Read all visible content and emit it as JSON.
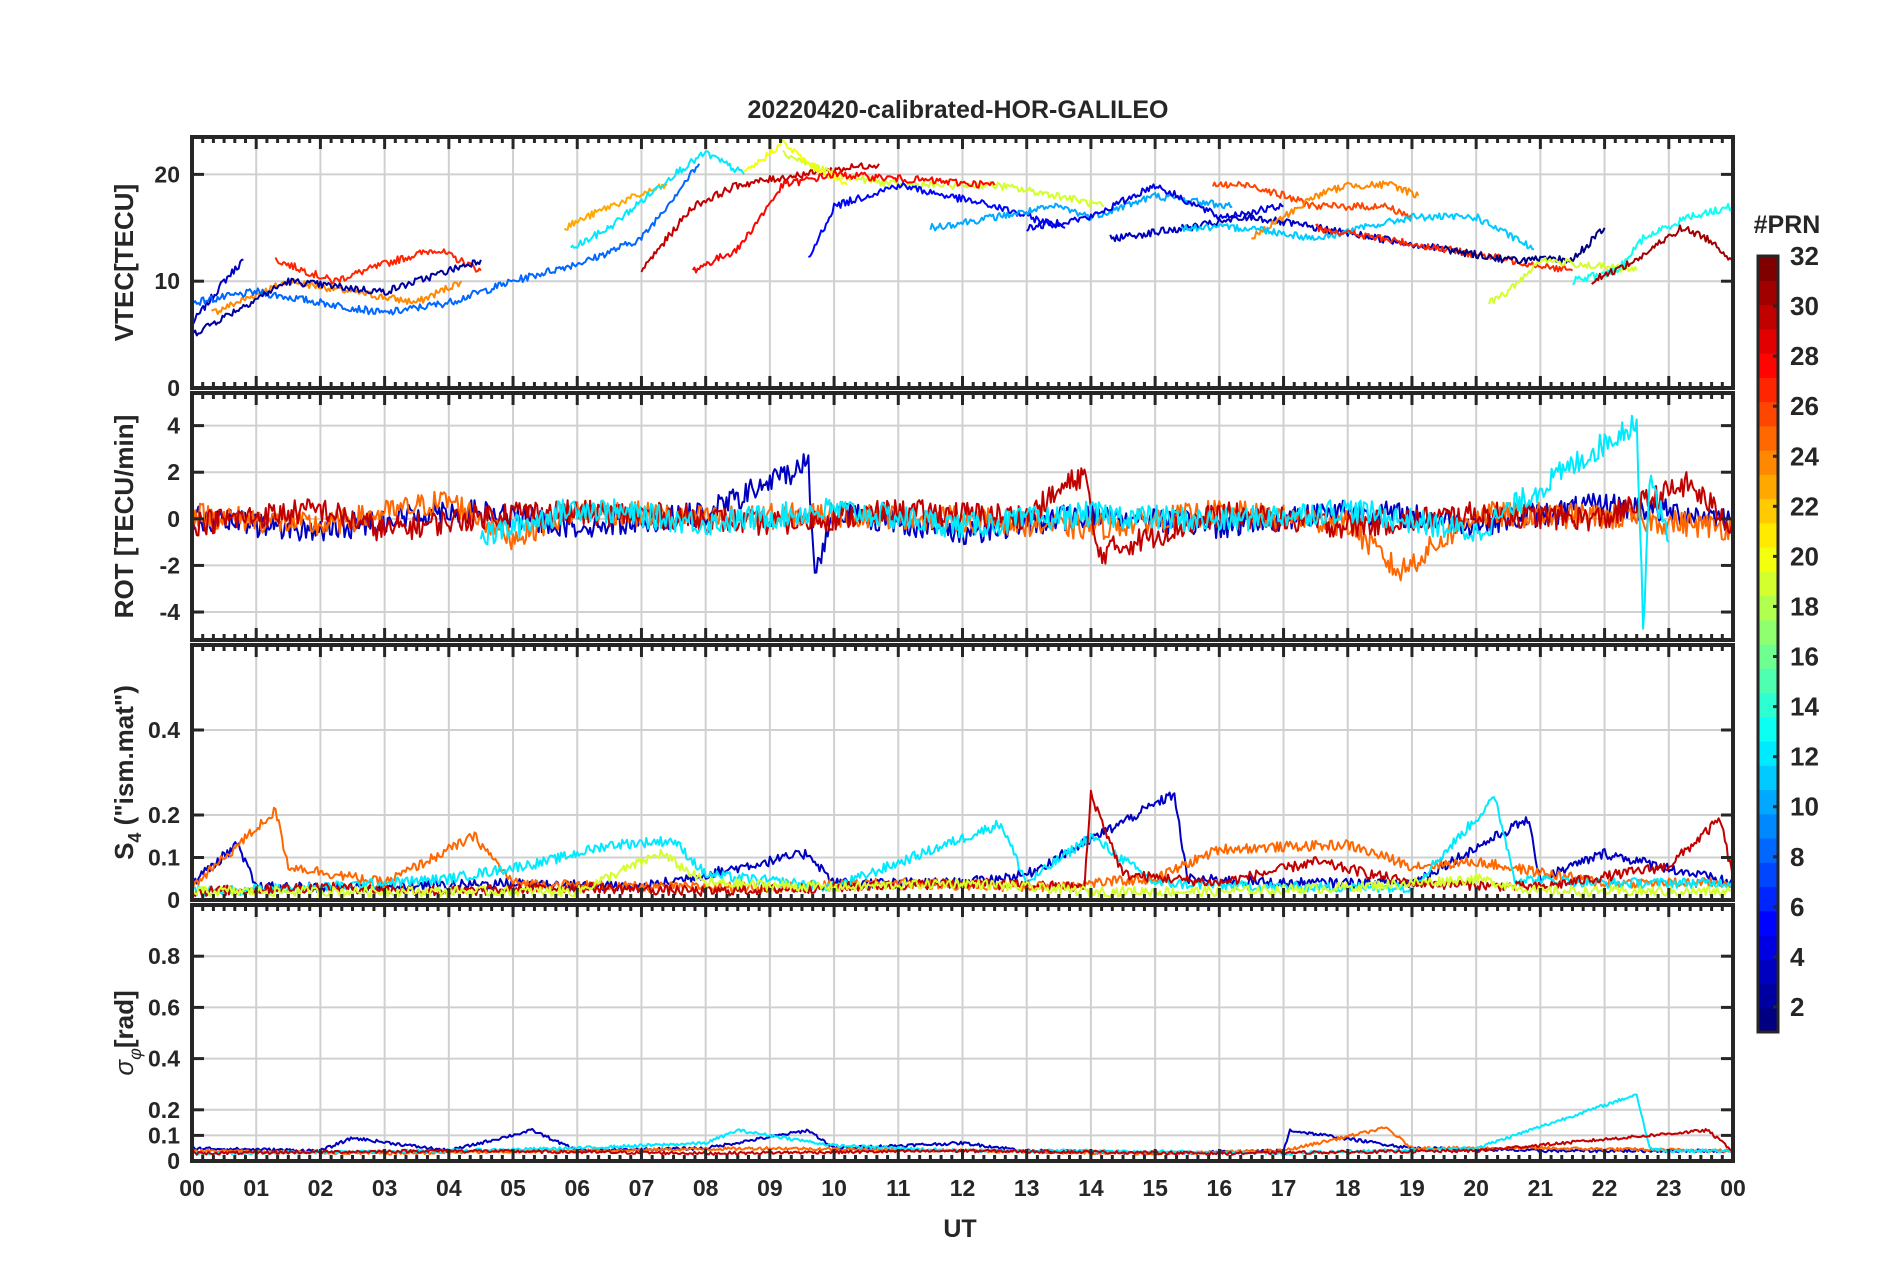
{
  "figure": {
    "title": "20220420-calibrated-HOR-GALILEO",
    "xlabel": "UT",
    "xticks": [
      "00",
      "01",
      "02",
      "03",
      "04",
      "05",
      "06",
      "07",
      "08",
      "09",
      "10",
      "11",
      "12",
      "13",
      "14",
      "15",
      "16",
      "17",
      "18",
      "19",
      "20",
      "21",
      "22",
      "23",
      "00"
    ]
  },
  "colorbar": {
    "label": "#PRN",
    "ticks": [
      "2",
      "4",
      "6",
      "8",
      "10",
      "12",
      "14",
      "16",
      "18",
      "20",
      "22",
      "24",
      "26",
      "28",
      "30",
      "32"
    ],
    "colormap": "jet",
    "range": [
      1,
      32
    ]
  },
  "chart_data": [
    {
      "type": "line",
      "panel": "vtec",
      "ylabel": "VTEC[TECU]",
      "xlim": [
        0,
        24
      ],
      "ylim": [
        0,
        23.5
      ],
      "yticks": [
        0,
        10,
        20
      ],
      "ytick_labels": [
        "0",
        "10",
        "20"
      ],
      "grid": true,
      "series": [
        {
          "prn": 3,
          "x": [
            0.0,
            0.5,
            0.8
          ],
          "y": [
            6,
            10,
            12
          ]
        },
        {
          "prn": 24,
          "x": [
            0.3,
            1.5,
            2.5,
            3.5,
            4.2
          ],
          "y": [
            7,
            10,
            9,
            8,
            10
          ]
        },
        {
          "prn": 27,
          "x": [
            1.3,
            2.2,
            3.2,
            3.8,
            4.5
          ],
          "y": [
            12,
            10,
            12,
            13,
            11
          ]
        },
        {
          "prn": 8,
          "x": [
            0.0,
            1.0,
            2.0,
            3.0,
            4.0,
            5.0,
            6.2,
            7.0,
            7.9
          ],
          "y": [
            8,
            9,
            8,
            7,
            8,
            10,
            12,
            14,
            21
          ]
        },
        {
          "prn": 2,
          "x": [
            0.0,
            1.5,
            3.0,
            4.5
          ],
          "y": [
            5,
            10,
            9,
            12
          ]
        },
        {
          "prn": 23,
          "x": [
            5.8,
            6.5,
            7.4
          ],
          "y": [
            15,
            17,
            19
          ]
        },
        {
          "prn": 12,
          "x": [
            5.9,
            6.5,
            7.5,
            8.0,
            8.6
          ],
          "y": [
            13,
            15,
            20,
            22,
            20
          ]
        },
        {
          "prn": 30,
          "x": [
            7.0,
            7.8,
            8.5,
            9.5,
            10.7
          ],
          "y": [
            11,
            17,
            19,
            20,
            21
          ]
        },
        {
          "prn": 19,
          "x": [
            9.2,
            10.0,
            11.0,
            12.5,
            13.5,
            14.2
          ],
          "y": [
            22,
            20,
            19,
            19,
            18,
            17
          ]
        },
        {
          "prn": 20,
          "x": [
            8.6,
            9.2,
            9.6,
            10.2
          ],
          "y": [
            20,
            23,
            21,
            19
          ]
        },
        {
          "prn": 28,
          "x": [
            7.8,
            8.5,
            9.2,
            10.0,
            12.5
          ],
          "y": [
            11,
            13,
            19,
            20,
            19
          ]
        },
        {
          "prn": 5,
          "x": [
            9.6,
            10.0,
            11.0,
            12.5,
            13.6
          ],
          "y": [
            12,
            17,
            19,
            17,
            15
          ]
        },
        {
          "prn": 10,
          "x": [
            11.5,
            12.5,
            13.5,
            14.0,
            15.0,
            16.2
          ],
          "y": [
            15,
            16,
            17,
            16,
            18,
            17
          ]
        },
        {
          "prn": 4,
          "x": [
            13.0,
            14.0,
            15.0,
            16.0,
            17.0
          ],
          "y": [
            15,
            16,
            19,
            16,
            17
          ]
        },
        {
          "prn": 3,
          "x": [
            14.3,
            15.5,
            16.5,
            17.5,
            18.5,
            19.5
          ],
          "y": [
            14,
            15,
            16,
            15,
            14,
            13
          ]
        },
        {
          "prn": 26,
          "x": [
            15.9,
            16.5,
            17.5,
            18.6,
            19.0
          ],
          "y": [
            19,
            19,
            17,
            17,
            16
          ]
        },
        {
          "prn": 24,
          "x": [
            16.5,
            17.5,
            18.0,
            18.7,
            19.1
          ],
          "y": [
            14,
            18,
            19,
            19,
            18
          ]
        },
        {
          "prn": 11,
          "x": [
            15.4,
            16.5,
            17.5,
            19.0,
            20.0,
            20.9
          ],
          "y": [
            15,
            15,
            14,
            16,
            16,
            13
          ]
        },
        {
          "prn": 27,
          "x": [
            17.5,
            18.5,
            19.5,
            20.5,
            21.5
          ],
          "y": [
            15,
            14,
            13,
            12,
            11
          ]
        },
        {
          "prn": 1,
          "x": [
            19.5,
            20.5,
            21.5,
            22.0
          ],
          "y": [
            13,
            12,
            12,
            15
          ]
        },
        {
          "prn": 19,
          "x": [
            20.2,
            20.5,
            21.0,
            22.5
          ],
          "y": [
            8,
            9,
            12,
            11
          ]
        },
        {
          "prn": 13,
          "x": [
            21.5,
            22.2,
            22.6,
            23.3,
            24.0
          ],
          "y": [
            10,
            11,
            14,
            16,
            17
          ]
        },
        {
          "prn": 31,
          "x": [
            21.8,
            22.5,
            23.2,
            23.6,
            24.0
          ],
          "y": [
            10,
            12,
            15,
            14,
            12
          ]
        }
      ]
    },
    {
      "type": "line",
      "panel": "rot",
      "ylabel": "ROT [TECU/min]",
      "xlim": [
        0,
        24
      ],
      "ylim": [
        -5.2,
        5.4
      ],
      "yticks": [
        -4,
        -2,
        0,
        2,
        4
      ],
      "ytick_labels": [
        "-4",
        "-2",
        "0",
        "2",
        "4"
      ],
      "grid": true,
      "series": [
        {
          "prn": 3,
          "x": [
            0,
            2,
            4,
            6,
            8,
            9.6,
            9.7,
            10,
            12,
            14,
            16,
            18,
            20,
            22,
            24
          ],
          "y": [
            0,
            -0.5,
            0.4,
            -0.3,
            0.2,
            2.4,
            -2.4,
            0.3,
            -0.6,
            0.2,
            -0.3,
            0.4,
            -0.2,
            0.6,
            0
          ]
        },
        {
          "prn": 25,
          "x": [
            0,
            2,
            4,
            5,
            6,
            8,
            10,
            12,
            14,
            16,
            18,
            18.8,
            20,
            22,
            24
          ],
          "y": [
            0.2,
            -0.3,
            0.8,
            -0.8,
            0.4,
            0,
            0.2,
            0,
            -0.4,
            0.3,
            -0.2,
            -2.3,
            0.2,
            0.1,
            -0.4
          ]
        },
        {
          "prn": 30,
          "x": [
            0,
            2,
            3,
            5,
            7,
            9,
            11,
            13,
            13.9,
            14.1,
            16,
            18,
            20,
            22,
            23.3,
            24
          ],
          "y": [
            -0.2,
            0.4,
            -0.5,
            0.3,
            0.2,
            -0.2,
            0.3,
            0.1,
            2.0,
            -1.5,
            0.2,
            -0.3,
            0.2,
            0,
            1.5,
            -0.3
          ]
        },
        {
          "prn": 12,
          "x": [
            4.5,
            6,
            8,
            10,
            12,
            14,
            16,
            18,
            20,
            22.5,
            22.6,
            22.7,
            23
          ],
          "y": [
            -0.8,
            0.5,
            -0.2,
            0.4,
            -0.3,
            0.2,
            -0.1,
            0.4,
            -0.6,
            4.2,
            -4.8,
            2.0,
            -1.0
          ]
        }
      ]
    },
    {
      "type": "line",
      "panel": "s4",
      "ylabel": "S4 (\"ism.mat\")",
      "xlim": [
        0,
        24
      ],
      "ylim": [
        0,
        0.6
      ],
      "yticks": [
        0,
        0.1,
        0.2,
        0.4
      ],
      "ytick_labels": [
        "0",
        "0.1",
        "0.2",
        "0.4"
      ],
      "grid": true,
      "series": [
        {
          "prn": 3,
          "x": [
            0,
            0.7,
            1,
            3,
            5,
            7,
            9.6,
            10,
            12,
            13,
            15.3,
            15.5,
            17,
            19,
            20.8,
            21,
            22,
            24
          ],
          "y": [
            0.04,
            0.13,
            0.03,
            0.03,
            0.04,
            0.03,
            0.11,
            0.04,
            0.04,
            0.06,
            0.25,
            0.05,
            0.04,
            0.04,
            0.19,
            0.05,
            0.11,
            0.04
          ]
        },
        {
          "prn": 25,
          "x": [
            0,
            1.3,
            1.5,
            3,
            4.4,
            5,
            7,
            9,
            11,
            13,
            15,
            16,
            18,
            19,
            20,
            22,
            24
          ],
          "y": [
            0.03,
            0.21,
            0.08,
            0.04,
            0.15,
            0.04,
            0.03,
            0.03,
            0.04,
            0.03,
            0.05,
            0.12,
            0.13,
            0.08,
            0.09,
            0.04,
            0.04
          ]
        },
        {
          "prn": 12,
          "x": [
            0,
            2,
            4,
            5.5,
            6.5,
            7.5,
            8,
            10,
            12.6,
            13,
            14,
            15,
            17,
            19,
            20.3,
            20.6,
            22,
            24
          ],
          "y": [
            0.02,
            0.03,
            0.05,
            0.09,
            0.13,
            0.14,
            0.06,
            0.03,
            0.18,
            0.04,
            0.15,
            0.04,
            0.03,
            0.03,
            0.24,
            0.05,
            0.04,
            0.04
          ]
        },
        {
          "prn": 30,
          "x": [
            0,
            2,
            4,
            6,
            8,
            10,
            12,
            13.9,
            14.0,
            14.5,
            16,
            17.5,
            19,
            21,
            23.0,
            23.8,
            24
          ],
          "y": [
            0.02,
            0.03,
            0.02,
            0.03,
            0.02,
            0.03,
            0.04,
            0.03,
            0.25,
            0.06,
            0.04,
            0.09,
            0.04,
            0.03,
            0.08,
            0.19,
            0.05
          ]
        },
        {
          "prn": 19,
          "x": [
            0,
            3,
            6,
            7.3,
            8,
            10,
            12,
            14,
            16,
            18,
            20,
            21,
            24
          ],
          "y": [
            0.02,
            0.02,
            0.02,
            0.11,
            0.04,
            0.03,
            0.04,
            0.02,
            0.02,
            0.03,
            0.05,
            0.02,
            0.02
          ]
        }
      ]
    },
    {
      "type": "line",
      "panel": "sigma_phi",
      "ylabel": "σφ[rad]",
      "xlim": [
        0,
        24
      ],
      "ylim": [
        0,
        1.0
      ],
      "yticks": [
        0,
        0.1,
        0.2,
        0.4,
        0.6,
        0.8
      ],
      "ytick_labels": [
        "0",
        "0.1",
        "0.2",
        "0.4",
        "0.6",
        "0.8"
      ],
      "grid": true,
      "series": [
        {
          "prn": 3,
          "x": [
            0,
            2,
            2.5,
            4,
            5.3,
            6,
            8,
            9.6,
            10,
            12,
            13,
            15,
            17,
            17.1,
            19,
            21,
            24
          ],
          "y": [
            0.05,
            0.04,
            0.09,
            0.04,
            0.12,
            0.04,
            0.05,
            0.12,
            0.05,
            0.07,
            0.04,
            0.03,
            0.04,
            0.12,
            0.05,
            0.04,
            0.04
          ]
        },
        {
          "prn": 25,
          "x": [
            0,
            3,
            6,
            9,
            12,
            15,
            17,
            18.6,
            19,
            21,
            24
          ],
          "y": [
            0.04,
            0.03,
            0.04,
            0.05,
            0.04,
            0.03,
            0.04,
            0.13,
            0.05,
            0.05,
            0.04
          ]
        },
        {
          "prn": 12,
          "x": [
            0,
            4,
            6,
            8,
            8.5,
            10,
            12,
            14,
            17,
            20,
            22.5,
            22.7,
            23,
            24
          ],
          "y": [
            0.03,
            0.04,
            0.05,
            0.07,
            0.12,
            0.06,
            0.04,
            0.04,
            0.03,
            0.05,
            0.26,
            0.05,
            0.04,
            0.04
          ]
        },
        {
          "prn": 30,
          "x": [
            0,
            4,
            8,
            12,
            16,
            20,
            23.6,
            24
          ],
          "y": [
            0.03,
            0.04,
            0.03,
            0.04,
            0.03,
            0.04,
            0.12,
            0.04
          ]
        }
      ]
    }
  ]
}
